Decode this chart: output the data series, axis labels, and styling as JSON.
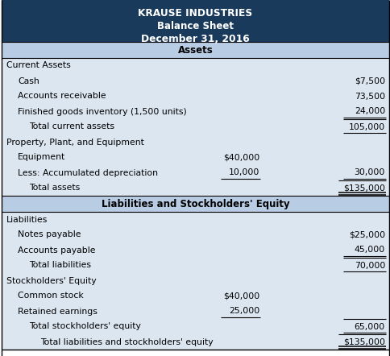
{
  "title_lines": [
    "KRAUSE INDUSTRIES",
    "Balance Sheet",
    "December 31, 2016"
  ],
  "header_bg": "#1a3a5c",
  "header_text_color": "#ffffff",
  "section_header_bg": "#b8cce4",
  "row_bg_light": "#dce6f1",
  "rows": [
    {
      "type": "section_header",
      "label": "Assets",
      "col1": "",
      "col2": "",
      "indent": 0
    },
    {
      "type": "category",
      "label": "Current Assets",
      "col1": "",
      "col2": "",
      "indent": 0
    },
    {
      "type": "item",
      "label": "Cash",
      "col1": "",
      "col2": "$7,500",
      "indent": 1
    },
    {
      "type": "item",
      "label": "Accounts receivable",
      "col1": "",
      "col2": "73,500",
      "indent": 1
    },
    {
      "type": "item_ul",
      "label": "Finished goods inventory (1,500 units)",
      "col1": "",
      "col2": "24,000",
      "indent": 1
    },
    {
      "type": "total",
      "label": "Total current assets",
      "col1": "",
      "col2": "105,000",
      "indent": 2
    },
    {
      "type": "category",
      "label": "Property, Plant, and Equipment",
      "col1": "",
      "col2": "",
      "indent": 0
    },
    {
      "type": "item",
      "label": "Equipment",
      "col1": "$40,000",
      "col2": "",
      "indent": 1
    },
    {
      "type": "item_ul2",
      "label": "Less: Accumulated depreciation",
      "col1": "10,000",
      "col2": "30,000",
      "indent": 1
    },
    {
      "type": "total_dbl",
      "label": "Total assets",
      "col1": "",
      "col2": "$135,000",
      "indent": 2
    },
    {
      "type": "section_header",
      "label": "Liabilities and Stockholders' Equity",
      "col1": "",
      "col2": "",
      "indent": 0
    },
    {
      "type": "category",
      "label": "Liabilities",
      "col1": "",
      "col2": "",
      "indent": 0
    },
    {
      "type": "item",
      "label": "Notes payable",
      "col1": "",
      "col2": "$25,000",
      "indent": 1
    },
    {
      "type": "item_ul",
      "label": "Accounts payable",
      "col1": "",
      "col2": "45,000",
      "indent": 1
    },
    {
      "type": "total",
      "label": "Total liabilities",
      "col1": "",
      "col2": "70,000",
      "indent": 2
    },
    {
      "type": "category",
      "label": "Stockholders' Equity",
      "col1": "",
      "col2": "",
      "indent": 0
    },
    {
      "type": "item",
      "label": "Common stock",
      "col1": "$40,000",
      "col2": "",
      "indent": 1
    },
    {
      "type": "item_ul2",
      "label": "Retained earnings",
      "col1": "25,000",
      "col2": "",
      "indent": 1
    },
    {
      "type": "total",
      "label": "Total stockholders' equity",
      "col1": "",
      "col2": "65,000",
      "indent": 2
    },
    {
      "type": "total_dbl",
      "label": "Total liabilities and stockholders' equity",
      "col1": "",
      "col2": "$135,000",
      "indent": 3
    }
  ]
}
